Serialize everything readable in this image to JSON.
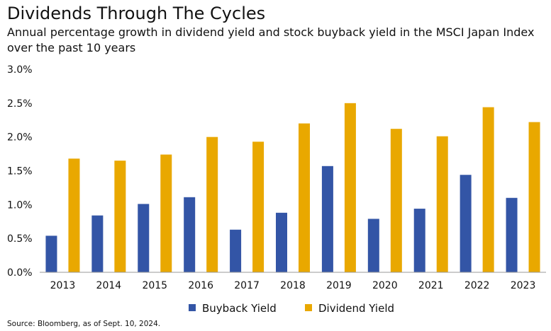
{
  "chart_data": {
    "type": "bar",
    "title": "Dividends Through The Cycles",
    "subtitle": "Annual percentage growth in dividend yield and stock buyback yield in the MSCI Japan Index over the past 10 years",
    "categories": [
      "2013",
      "2014",
      "2015",
      "2016",
      "2017",
      "2018",
      "2019",
      "2020",
      "2021",
      "2022",
      "2023"
    ],
    "series": [
      {
        "name": "Buyback Yield",
        "color": "#3355a6",
        "values": [
          0.54,
          0.84,
          1.01,
          1.11,
          0.63,
          0.88,
          1.57,
          0.79,
          0.94,
          1.44,
          1.1
        ]
      },
      {
        "name": "Dividend Yield",
        "color": "#e9a800",
        "values": [
          1.68,
          1.65,
          1.74,
          2.0,
          1.93,
          2.2,
          2.5,
          2.12,
          2.01,
          2.44,
          2.22
        ]
      }
    ],
    "y_ticks": [
      "0.0%",
      "0.5%",
      "1.0%",
      "1.5%",
      "2.0%",
      "2.5%",
      "3.0%"
    ],
    "ylim": [
      0,
      3.0
    ],
    "grid": false,
    "legend_position": "bottom-center",
    "xlabel": "",
    "ylabel": "",
    "source": "Source: Bloomberg, as of Sept. 10, 2024."
  }
}
